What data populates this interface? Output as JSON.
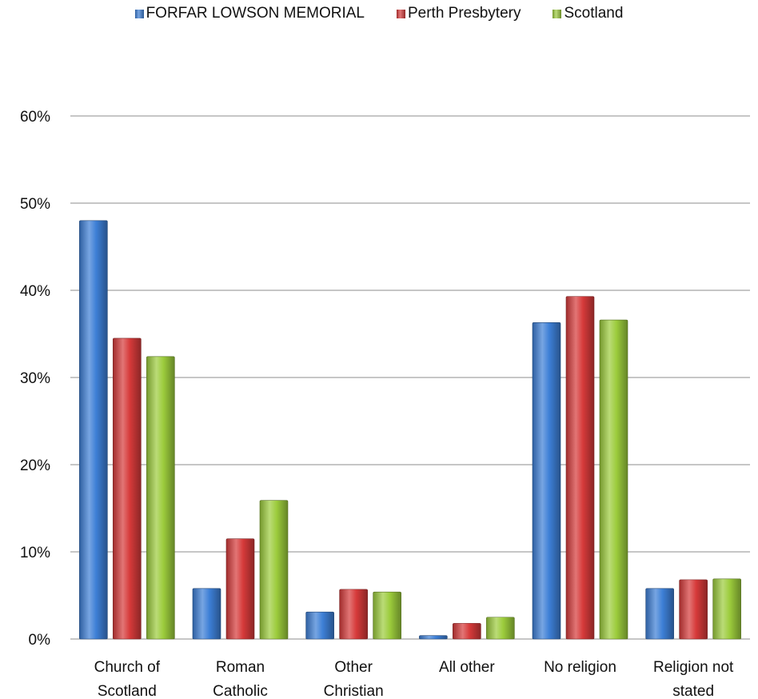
{
  "chart_data": {
    "type": "bar",
    "categories": [
      [
        "Church of",
        "Scotland"
      ],
      [
        "Roman",
        "Catholic"
      ],
      [
        "Other",
        "Christian"
      ],
      [
        "All other"
      ],
      [
        "No religion"
      ],
      [
        "Religion not",
        "stated"
      ]
    ],
    "series": [
      {
        "name": "FORFAR LOWSON MEMORIAL",
        "color": "#3d7fd6",
        "values": [
          48.0,
          5.8,
          3.1,
          0.4,
          36.3,
          5.8
        ]
      },
      {
        "name": "Perth Presbytery",
        "color": "#d63a3a",
        "values": [
          34.5,
          11.5,
          5.7,
          1.8,
          39.3,
          6.8
        ]
      },
      {
        "name": "Scotland",
        "color": "#9ccc3c",
        "values": [
          32.4,
          15.9,
          5.4,
          2.5,
          36.6,
          6.9
        ]
      }
    ],
    "yticks": [
      "0%",
      "10%",
      "20%",
      "30%",
      "40%",
      "50%",
      "60%"
    ],
    "ylim": [
      0,
      60
    ],
    "grid": true,
    "legend_position": "top"
  }
}
